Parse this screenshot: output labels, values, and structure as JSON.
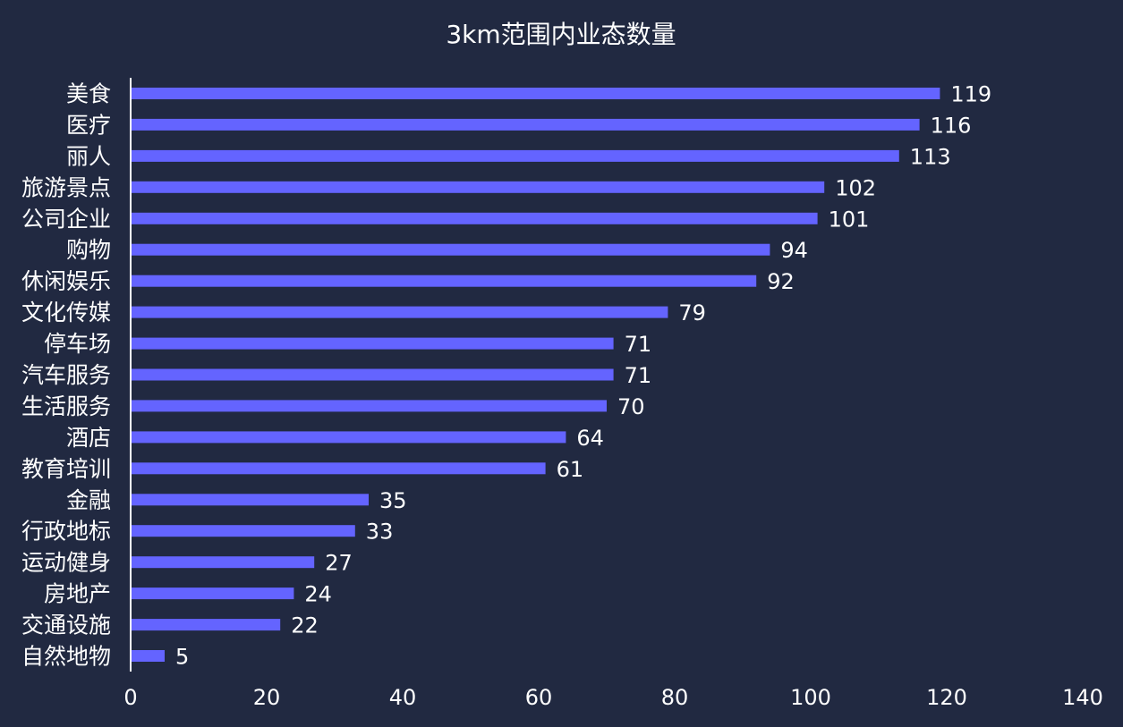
{
  "colors": {
    "background": "#212941",
    "bar": "#6464ff",
    "text": "#ffffff"
  },
  "chart_data": {
    "type": "bar",
    "orientation": "horizontal",
    "title": "3km范围内业态数量",
    "xlabel": "",
    "ylabel": "",
    "xlim": [
      0,
      140
    ],
    "x_ticks": [
      0,
      20,
      40,
      60,
      80,
      100,
      120,
      140
    ],
    "grid": false,
    "categories": [
      "美食",
      "医疗",
      "丽人",
      "旅游景点",
      "公司企业",
      "购物",
      "休闲娱乐",
      "文化传媒",
      "停车场",
      "汽车服务",
      "生活服务",
      "酒店",
      "教育培训",
      "金融",
      "行政地标",
      "运动健身",
      "房地产",
      "交通设施",
      "自然地物"
    ],
    "values": [
      119,
      116,
      113,
      102,
      101,
      94,
      92,
      79,
      71,
      71,
      70,
      64,
      61,
      35,
      33,
      27,
      24,
      22,
      5
    ],
    "data_labels": true
  }
}
